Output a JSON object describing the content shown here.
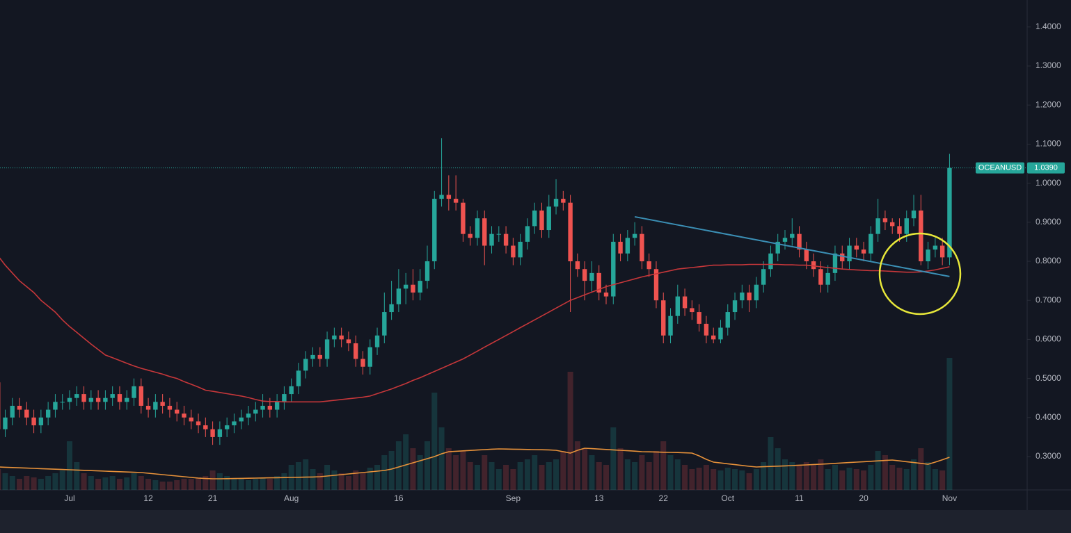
{
  "chart_data": {
    "type": "candlestick",
    "symbol": "OCEANUSD",
    "last_label": "1.0390",
    "up_color": "#26a69a",
    "down_color": "#ef5350",
    "grid": false,
    "categories": [
      null,
      null,
      null,
      null,
      null,
      null,
      null,
      null,
      null,
      null,
      "Jul",
      null,
      null,
      null,
      null,
      null,
      null,
      null,
      null,
      null,
      null,
      "12",
      null,
      null,
      null,
      null,
      null,
      null,
      null,
      null,
      "21",
      null,
      null,
      null,
      null,
      null,
      null,
      null,
      null,
      null,
      null,
      "Aug",
      null,
      null,
      null,
      null,
      null,
      null,
      null,
      null,
      null,
      null,
      null,
      null,
      null,
      null,
      "16",
      null,
      null,
      null,
      null,
      null,
      null,
      null,
      null,
      null,
      null,
      null,
      null,
      null,
      null,
      null,
      "Sep",
      null,
      null,
      null,
      null,
      null,
      null,
      null,
      null,
      null,
      null,
      null,
      "13",
      null,
      null,
      null,
      null,
      null,
      null,
      null,
      null,
      "22",
      null,
      null,
      null,
      null,
      null,
      null,
      null,
      null,
      "Oct",
      null,
      null,
      null,
      null,
      null,
      null,
      null,
      null,
      null,
      "11",
      null,
      null,
      null,
      null,
      null,
      null,
      null,
      null,
      "20",
      null,
      null,
      null,
      null,
      null,
      null,
      null,
      null,
      null,
      null,
      null,
      "Nov"
    ],
    "open": [
      0.49,
      0.37,
      0.4,
      0.43,
      0.42,
      0.4,
      0.38,
      0.4,
      0.42,
      0.44,
      0.44,
      0.45,
      0.46,
      0.44,
      0.45,
      0.44,
      0.45,
      0.46,
      0.44,
      0.45,
      0.48,
      0.43,
      0.42,
      0.44,
      0.43,
      0.42,
      0.41,
      0.4,
      0.39,
      0.38,
      0.37,
      0.35,
      0.37,
      0.38,
      0.39,
      0.4,
      0.41,
      0.42,
      0.43,
      0.42,
      0.44,
      0.46,
      0.48,
      0.52,
      0.55,
      0.56,
      0.55,
      0.6,
      0.61,
      0.6,
      0.59,
      0.55,
      0.53,
      0.58,
      0.61,
      0.67,
      0.69,
      0.73,
      0.74,
      0.72,
      0.75,
      0.8,
      0.96,
      0.97,
      0.96,
      0.95,
      0.87,
      0.86,
      0.91,
      0.84,
      0.87,
      0.87,
      0.84,
      0.81,
      0.85,
      0.89,
      0.93,
      0.88,
      0.94,
      0.96,
      0.95,
      0.8,
      0.78,
      0.75,
      0.77,
      0.72,
      0.71,
      0.85,
      0.82,
      0.86,
      0.87,
      0.8,
      0.78,
      0.7,
      0.61,
      0.66,
      0.71,
      0.68,
      0.67,
      0.64,
      0.61,
      0.6,
      0.63,
      0.67,
      0.7,
      0.72,
      0.7,
      0.74,
      0.78,
      0.82,
      0.85,
      0.86,
      0.87,
      0.83,
      0.8,
      0.78,
      0.74,
      0.77,
      0.82,
      0.8,
      0.84,
      0.83,
      0.82,
      0.87,
      0.91,
      0.9,
      0.89,
      0.87,
      0.91,
      0.93,
      0.8,
      0.83,
      0.84,
      0.81
    ],
    "high": [
      0.51,
      0.42,
      0.45,
      0.45,
      0.44,
      0.42,
      0.42,
      0.44,
      0.46,
      0.46,
      0.47,
      0.48,
      0.48,
      0.47,
      0.47,
      0.47,
      0.48,
      0.48,
      0.47,
      0.5,
      0.5,
      0.45,
      0.46,
      0.46,
      0.45,
      0.44,
      0.43,
      0.42,
      0.41,
      0.4,
      0.39,
      0.39,
      0.4,
      0.41,
      0.42,
      0.43,
      0.44,
      0.46,
      0.45,
      0.46,
      0.48,
      0.5,
      0.54,
      0.57,
      0.58,
      0.58,
      0.62,
      0.63,
      0.63,
      0.62,
      0.61,
      0.57,
      0.6,
      0.63,
      0.72,
      0.75,
      0.78,
      0.77,
      0.78,
      0.78,
      0.84,
      0.98,
      1.115,
      1.02,
      1.02,
      0.96,
      0.89,
      0.93,
      0.93,
      0.89,
      0.89,
      0.89,
      0.86,
      0.87,
      0.91,
      0.95,
      0.95,
      0.97,
      1.01,
      0.98,
      0.97,
      0.82,
      0.8,
      0.8,
      0.79,
      0.74,
      0.87,
      0.87,
      0.88,
      0.9,
      0.89,
      0.82,
      0.8,
      0.72,
      0.68,
      0.74,
      0.73,
      0.7,
      0.69,
      0.66,
      0.63,
      0.65,
      0.69,
      0.72,
      0.74,
      0.74,
      0.76,
      0.8,
      0.84,
      0.87,
      0.88,
      0.91,
      0.89,
      0.85,
      0.82,
      0.8,
      0.79,
      0.84,
      0.84,
      0.86,
      0.86,
      0.85,
      0.89,
      0.96,
      0.93,
      0.91,
      0.91,
      0.93,
      0.97,
      0.97,
      0.85,
      0.86,
      0.86,
      1.075
    ],
    "low": [
      0.33,
      0.35,
      0.38,
      0.4,
      0.38,
      0.36,
      0.36,
      0.38,
      0.4,
      0.42,
      0.42,
      0.43,
      0.42,
      0.42,
      0.42,
      0.42,
      0.43,
      0.42,
      0.42,
      0.43,
      0.41,
      0.4,
      0.4,
      0.41,
      0.4,
      0.39,
      0.38,
      0.37,
      0.36,
      0.35,
      0.33,
      0.33,
      0.35,
      0.36,
      0.37,
      0.38,
      0.39,
      0.4,
      0.4,
      0.4,
      0.42,
      0.44,
      0.46,
      0.5,
      0.53,
      0.53,
      0.53,
      0.58,
      0.58,
      0.57,
      0.53,
      0.51,
      0.51,
      0.56,
      0.59,
      0.65,
      0.67,
      0.69,
      0.7,
      0.7,
      0.73,
      0.78,
      0.94,
      0.93,
      0.93,
      0.85,
      0.84,
      0.84,
      0.79,
      0.82,
      0.85,
      0.82,
      0.79,
      0.79,
      0.83,
      0.87,
      0.86,
      0.86,
      0.92,
      0.93,
      0.67,
      0.76,
      0.7,
      0.72,
      0.7,
      0.69,
      0.69,
      0.8,
      0.8,
      0.84,
      0.78,
      0.76,
      0.68,
      0.59,
      0.59,
      0.64,
      0.66,
      0.65,
      0.62,
      0.59,
      0.59,
      0.59,
      0.61,
      0.65,
      0.68,
      0.67,
      0.68,
      0.72,
      0.76,
      0.8,
      0.83,
      0.84,
      0.81,
      0.78,
      0.76,
      0.72,
      0.72,
      0.75,
      0.78,
      0.78,
      0.81,
      0.8,
      0.8,
      0.85,
      0.88,
      0.87,
      0.85,
      0.85,
      0.89,
      0.79,
      0.78,
      0.81,
      0.79,
      0.79
    ],
    "close": [
      0.37,
      0.4,
      0.43,
      0.42,
      0.4,
      0.38,
      0.4,
      0.42,
      0.44,
      0.44,
      0.45,
      0.46,
      0.44,
      0.45,
      0.44,
      0.45,
      0.46,
      0.44,
      0.45,
      0.48,
      0.43,
      0.42,
      0.44,
      0.43,
      0.42,
      0.41,
      0.4,
      0.39,
      0.38,
      0.37,
      0.35,
      0.37,
      0.38,
      0.39,
      0.4,
      0.41,
      0.42,
      0.43,
      0.42,
      0.44,
      0.46,
      0.48,
      0.52,
      0.55,
      0.56,
      0.55,
      0.6,
      0.61,
      0.6,
      0.59,
      0.55,
      0.53,
      0.58,
      0.61,
      0.67,
      0.69,
      0.73,
      0.74,
      0.72,
      0.75,
      0.8,
      0.96,
      0.97,
      0.96,
      0.95,
      0.87,
      0.86,
      0.91,
      0.84,
      0.87,
      0.87,
      0.84,
      0.81,
      0.85,
      0.89,
      0.93,
      0.88,
      0.94,
      0.96,
      0.95,
      0.8,
      0.78,
      0.75,
      0.77,
      0.72,
      0.71,
      0.85,
      0.82,
      0.86,
      0.87,
      0.8,
      0.78,
      0.7,
      0.61,
      0.66,
      0.71,
      0.68,
      0.67,
      0.64,
      0.61,
      0.6,
      0.63,
      0.67,
      0.7,
      0.72,
      0.7,
      0.74,
      0.78,
      0.82,
      0.85,
      0.86,
      0.87,
      0.83,
      0.8,
      0.78,
      0.74,
      0.77,
      0.82,
      0.8,
      0.84,
      0.83,
      0.82,
      0.87,
      0.91,
      0.9,
      0.89,
      0.87,
      0.91,
      0.93,
      0.8,
      0.83,
      0.84,
      0.81,
      1.039
    ],
    "volume": [
      15,
      12,
      10,
      8,
      10,
      9,
      8,
      10,
      12,
      14,
      35,
      20,
      12,
      10,
      8,
      9,
      10,
      8,
      9,
      12,
      10,
      8,
      7,
      6,
      6,
      7,
      8,
      8,
      9,
      10,
      14,
      12,
      10,
      8,
      8,
      7,
      8,
      9,
      8,
      10,
      12,
      18,
      20,
      22,
      15,
      12,
      18,
      14,
      12,
      10,
      14,
      12,
      16,
      18,
      25,
      28,
      35,
      40,
      30,
      25,
      35,
      70,
      45,
      30,
      25,
      28,
      20,
      18,
      25,
      20,
      15,
      18,
      15,
      20,
      22,
      25,
      18,
      20,
      22,
      28,
      85,
      35,
      30,
      25,
      20,
      18,
      45,
      30,
      22,
      20,
      25,
      20,
      28,
      35,
      25,
      22,
      18,
      15,
      16,
      18,
      15,
      14,
      16,
      15,
      14,
      12,
      15,
      20,
      38,
      30,
      22,
      20,
      18,
      20,
      18,
      22,
      15,
      18,
      14,
      16,
      15,
      14,
      18,
      28,
      25,
      18,
      16,
      15,
      22,
      30,
      20,
      15,
      14,
      95
    ],
    "ma": {
      "color": "#c6373a",
      "values": [
        0.814,
        0.79,
        0.77,
        0.75,
        0.735,
        0.72,
        0.7,
        0.685,
        0.67,
        0.65,
        0.633,
        0.618,
        0.603,
        0.588,
        0.574,
        0.56,
        0.553,
        0.546,
        0.539,
        0.532,
        0.526,
        0.521,
        0.516,
        0.511,
        0.505,
        0.5,
        0.492,
        0.485,
        0.478,
        0.47,
        0.467,
        0.464,
        0.461,
        0.458,
        0.455,
        0.451,
        0.446,
        0.442,
        0.441,
        0.441,
        0.44,
        0.44,
        0.44,
        0.44,
        0.44,
        0.44,
        0.442,
        0.444,
        0.446,
        0.448,
        0.45,
        0.452,
        0.455,
        0.461,
        0.467,
        0.473,
        0.48,
        0.487,
        0.495,
        0.502,
        0.51,
        0.518,
        0.526,
        0.534,
        0.542,
        0.55,
        0.56,
        0.57,
        0.58,
        0.59,
        0.6,
        0.61,
        0.62,
        0.63,
        0.64,
        0.65,
        0.66,
        0.67,
        0.68,
        0.69,
        0.7,
        0.707,
        0.714,
        0.721,
        0.728,
        0.735,
        0.74,
        0.745,
        0.75,
        0.755,
        0.76,
        0.764,
        0.768,
        0.772,
        0.776,
        0.78,
        0.782,
        0.784,
        0.786,
        0.788,
        0.79,
        0.79,
        0.791,
        0.791,
        0.791,
        0.792,
        0.792,
        0.792,
        0.792,
        0.792,
        0.791,
        0.791,
        0.79,
        0.79,
        0.788,
        0.786,
        0.784,
        0.782,
        0.78,
        0.779,
        0.778,
        0.777,
        0.776,
        0.776,
        0.775,
        0.774,
        0.773,
        0.772,
        0.772,
        0.773,
        0.775,
        0.778,
        0.782,
        0.786
      ]
    },
    "volume_ma": {
      "color": "#e8923a",
      "values": [
        16.5,
        16.3,
        16.1,
        15.9,
        15.7,
        15.5,
        15.3,
        15.1,
        14.9,
        14.7,
        14.5,
        14.3,
        14.1,
        13.9,
        13.7,
        13.5,
        13.3,
        13.1,
        12.9,
        12.7,
        12.5,
        12,
        11.5,
        11,
        10.5,
        10,
        9.5,
        9,
        8.5,
        8.2,
        8,
        8,
        8.1,
        8.2,
        8.3,
        8.4,
        8.5,
        8.6,
        8.7,
        8.8,
        8.9,
        9,
        9.1,
        9.2,
        9.3,
        9.5,
        10,
        10.5,
        11,
        11.5,
        12,
        12.5,
        13,
        13.5,
        14,
        15,
        16.5,
        18,
        19.5,
        21,
        22.5,
        24,
        26,
        27.5,
        27.8,
        28.1,
        28.4,
        28.7,
        29,
        29.3,
        29.5,
        29.4,
        29.3,
        29.2,
        29.1,
        29,
        28.9,
        28.8,
        28.5,
        27.5,
        26.5,
        28.5,
        30,
        29.7,
        29.4,
        29.1,
        28.8,
        28.5,
        28.2,
        27.9,
        27.5,
        27.4,
        27.3,
        27.1,
        27,
        26.9,
        26.7,
        26.5,
        24.5,
        22,
        20,
        19.4,
        18.8,
        18.2,
        17.6,
        17,
        16.5,
        16.7,
        16.9,
        17.1,
        17.3,
        17.5,
        17.8,
        18,
        18.3,
        18.5,
        18.8,
        19.1,
        19.4,
        19.7,
        20,
        20.3,
        20.6,
        20.9,
        21.2,
        21.5,
        20.9,
        20.3,
        19.7,
        19.1,
        18.5,
        20,
        21.7,
        23.5
      ]
    },
    "trendline": {
      "color": "#3b8fb5",
      "from": [
        89,
        0.914
      ],
      "to": [
        133,
        0.761
      ]
    },
    "ylim": [
      0.2146,
      1.469
    ],
    "vlim": [
      0,
      100
    ],
    "yticks": [
      {
        "value": 0.3,
        "label": "0.3000"
      },
      {
        "value": 0.4,
        "label": "0.4000"
      },
      {
        "value": 0.5,
        "label": "0.5000"
      },
      {
        "value": 0.6,
        "label": "0.6000"
      },
      {
        "value": 0.7,
        "label": "0.7000"
      },
      {
        "value": 0.8,
        "label": "0.8000"
      },
      {
        "value": 0.9,
        "label": "0.9000"
      },
      {
        "value": 1.0,
        "label": "1.0000"
      },
      {
        "value": 1.1,
        "label": "1.1000"
      },
      {
        "value": 1.2,
        "label": "1.2000"
      },
      {
        "value": 1.3,
        "label": "1.3000"
      },
      {
        "value": 1.4,
        "label": "1.4000"
      }
    ]
  }
}
